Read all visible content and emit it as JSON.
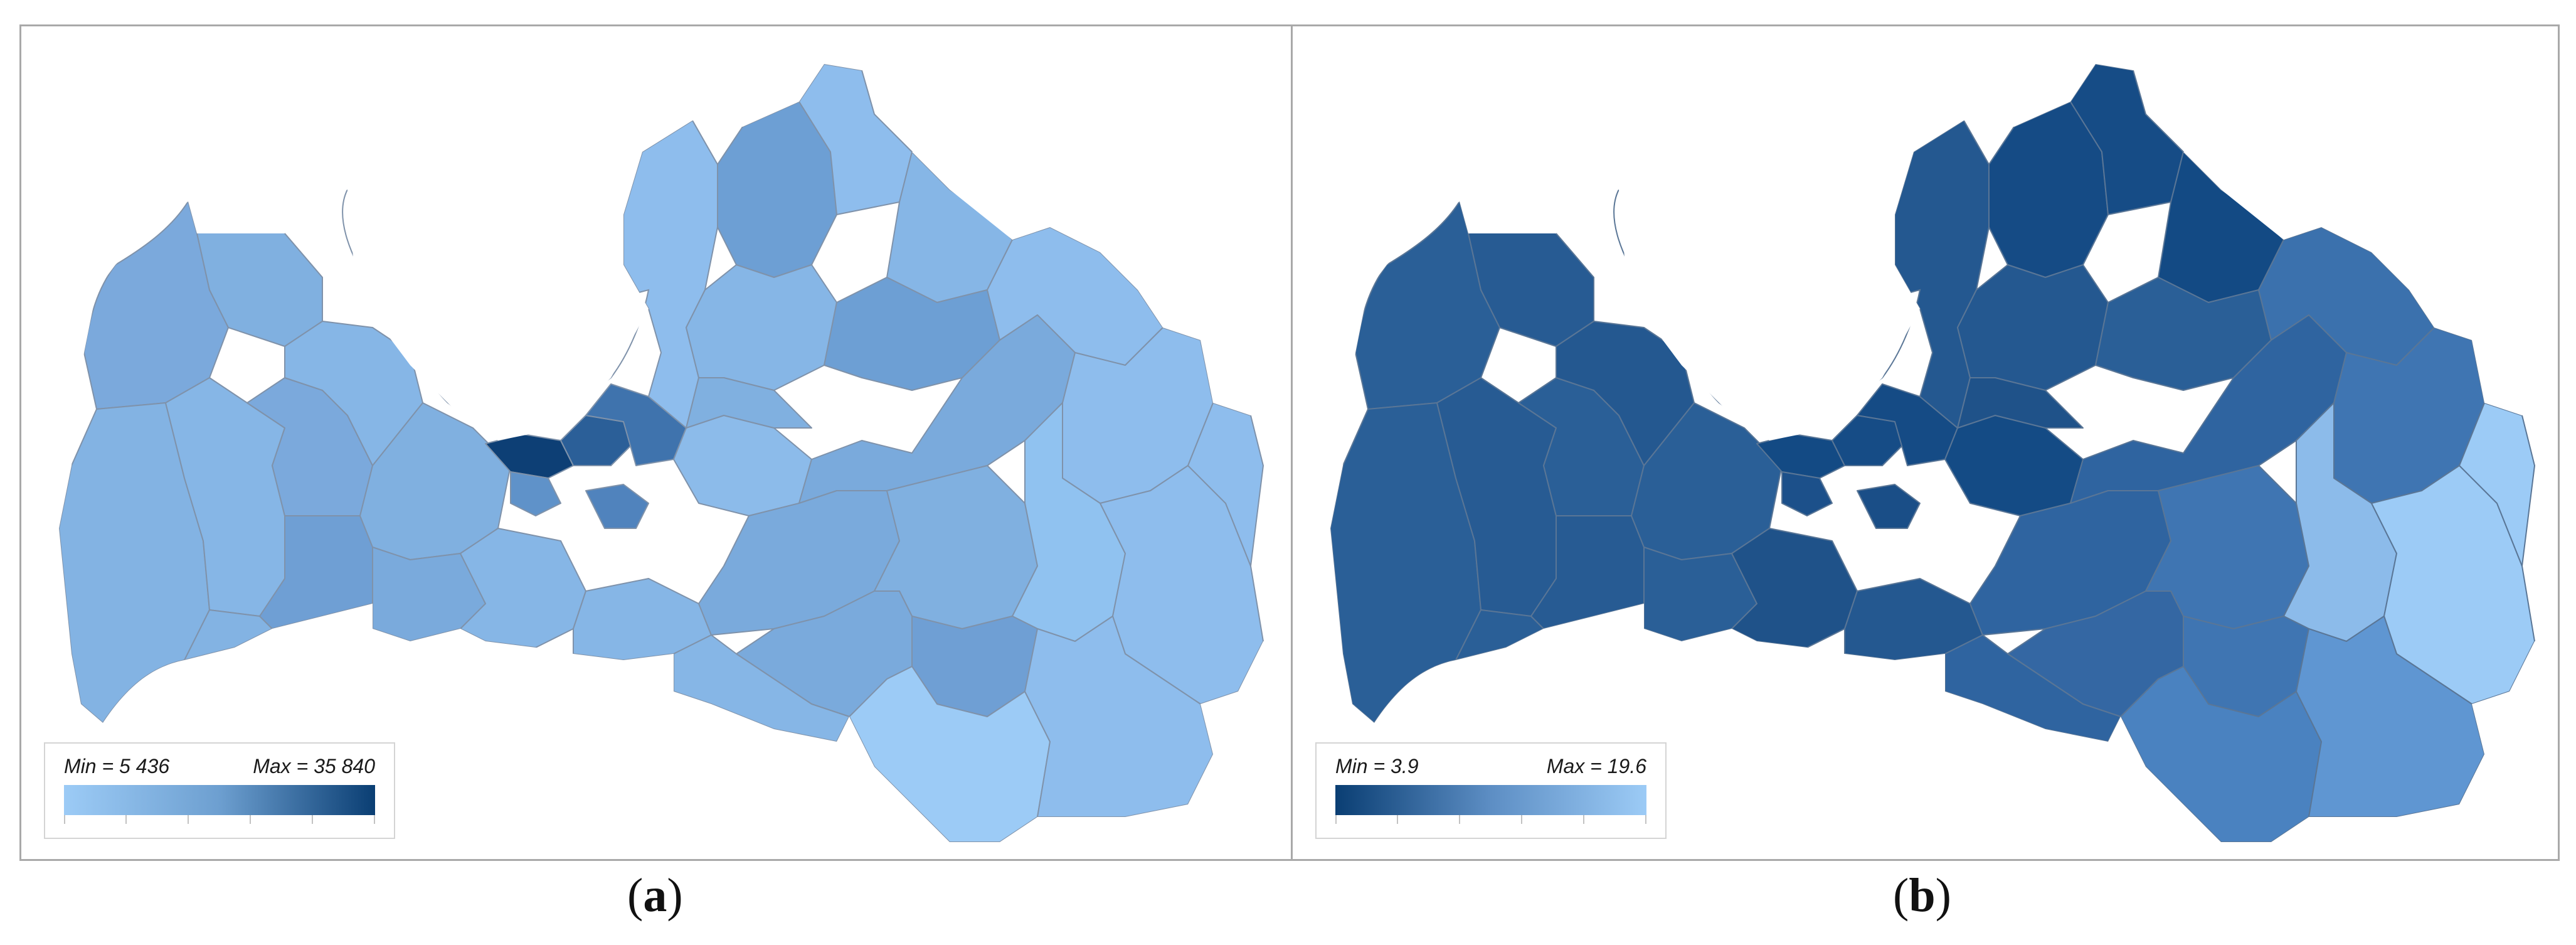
{
  "panels": [
    {
      "id": "a",
      "caption_open": "(",
      "caption_letter": "a",
      "caption_close": ")",
      "legend": {
        "min_label": "Min = 5 436",
        "max_label": "Max = 35 840",
        "color_low": "#9ccbf6",
        "color_high": "#0a3e73",
        "direction": "light-to-dark"
      }
    },
    {
      "id": "b",
      "caption_open": "(",
      "caption_letter": "b",
      "caption_close": ")",
      "legend": {
        "min_label": "Min = 3.9",
        "max_label": "Max = 19.6",
        "color_low": "#0a3e73",
        "color_high": "#9ccbf6",
        "direction": "dark-to-light"
      }
    }
  ],
  "colors": {
    "frame_border": "#a9a9a9",
    "region_border": "#7c8fa6",
    "map_a_base": "#86b6e6",
    "map_b_base": "#2a5f97"
  }
}
